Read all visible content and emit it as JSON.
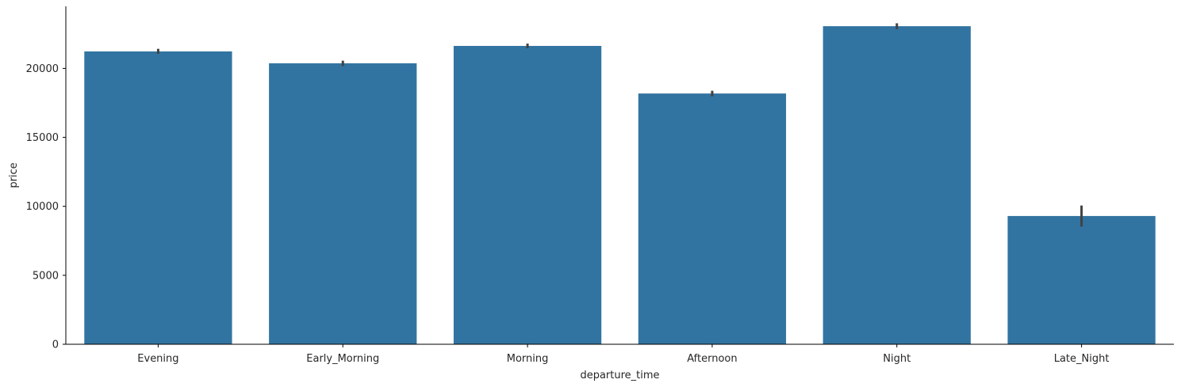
{
  "chart_data": {
    "type": "bar",
    "title": "",
    "xlabel": "departure_time",
    "ylabel": "price",
    "categories": [
      "Evening",
      "Early_Morning",
      "Morning",
      "Afternoon",
      "Night",
      "Late_Night"
    ],
    "values": [
      21230,
      20370,
      21630,
      18180,
      23060,
      9300
    ],
    "error_low": [
      21060,
      20170,
      21460,
      17980,
      22850,
      8530
    ],
    "error_high": [
      21420,
      20560,
      21800,
      18380,
      23270,
      10060
    ],
    "ylim": [
      0,
      24500
    ],
    "yticks": [
      0,
      5000,
      10000,
      15000,
      20000
    ],
    "grid": false,
    "legend": "none",
    "bar_color": "#3274a1",
    "error_color": "#424242"
  }
}
